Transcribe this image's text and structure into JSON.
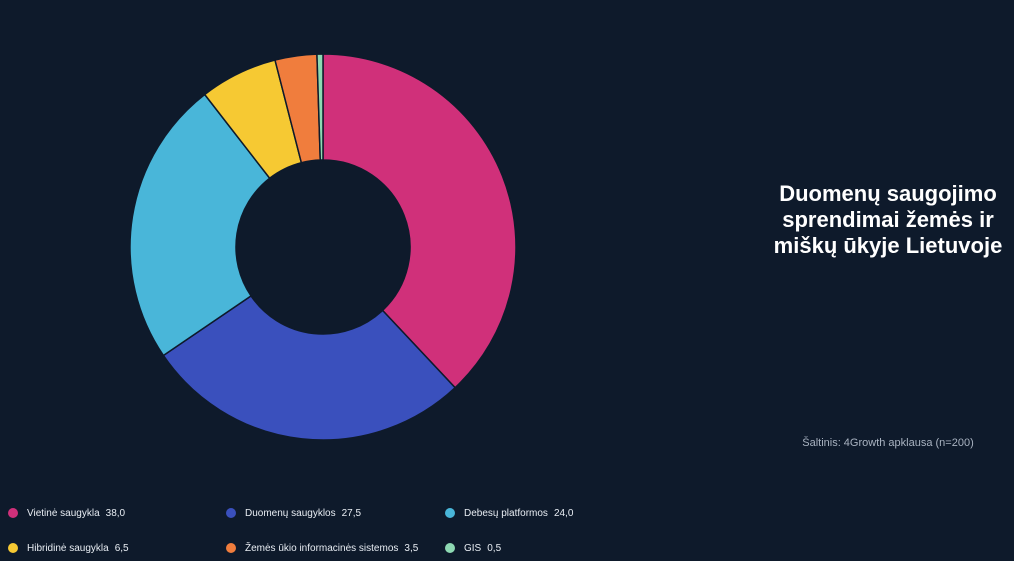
{
  "chart_data": {
    "type": "pie",
    "variant": "donut",
    "title": "Duomenų saugojimo sprendimai žemės ir miškų ūkyje Lietuvoje",
    "source": "Šaltinis: 4Growth apklausa (n=200)",
    "legend_position": "bottom-left",
    "slices": [
      {
        "label": "Vietinė saugykla",
        "value": 38.0,
        "value_label": "38,0",
        "color": "#d0307a"
      },
      {
        "label": "Duomenų saugyklos",
        "value": 27.5,
        "value_label": "27,5",
        "color": "#3a50bd"
      },
      {
        "label": "Debesų platformos",
        "value": 24.0,
        "value_label": "24,0",
        "color": "#49b6d9"
      },
      {
        "label": "Hibridinė saugykla",
        "value": 6.5,
        "value_label": "6,5",
        "color": "#f6c933"
      },
      {
        "label": "Žemės ūkio informacinės sistemos",
        "value": 3.5,
        "value_label": "3,5",
        "color": "#f07d3d"
      },
      {
        "label": "GIS",
        "value": 0.5,
        "value_label": "0,5",
        "color": "#8ed9b3"
      }
    ]
  }
}
